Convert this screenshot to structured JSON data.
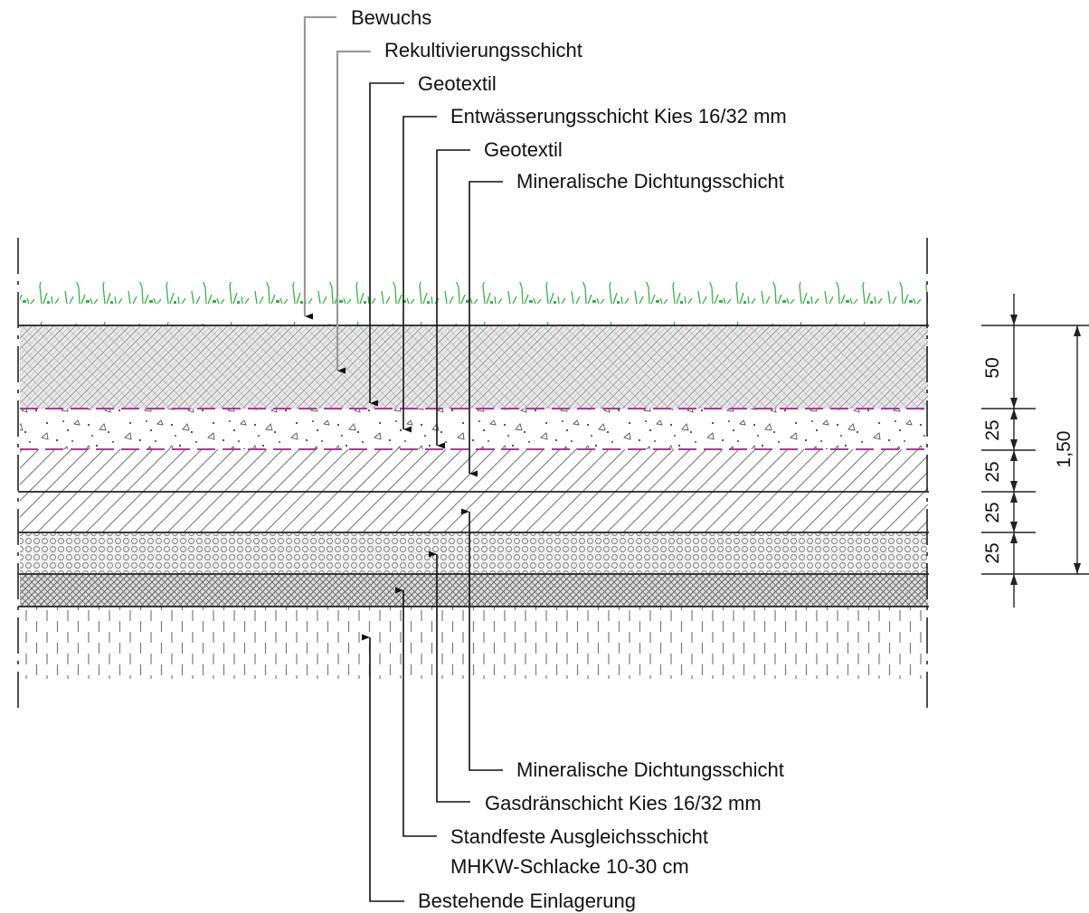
{
  "top_labels": [
    {
      "text": "Bewuchs"
    },
    {
      "text": "Rekultivierungsschicht"
    },
    {
      "text": "Geotextil"
    },
    {
      "text": "Entwässerungsschicht Kies 16/32  mm"
    },
    {
      "text": "Geotextil"
    },
    {
      "text": "Mineralische Dichtungsschicht"
    }
  ],
  "bottom_labels": [
    {
      "text": "Mineralische Dichtungsschicht"
    },
    {
      "text": "Gasdränschicht Kies 16/32  mm"
    },
    {
      "text": "Standfeste Ausgleichsschicht"
    },
    {
      "text": "MHKW-Schlacke 10-30 cm"
    },
    {
      "text": "Bestehende Einlagerung"
    }
  ],
  "dimensions": {
    "segments": [
      "50",
      "25",
      "25",
      "25",
      "25"
    ],
    "total": "1,50"
  },
  "colors": {
    "grass": "#33b24a",
    "geotextile": "#b0389a",
    "line": "#111111",
    "grey_leader": "#9a9a9a"
  }
}
